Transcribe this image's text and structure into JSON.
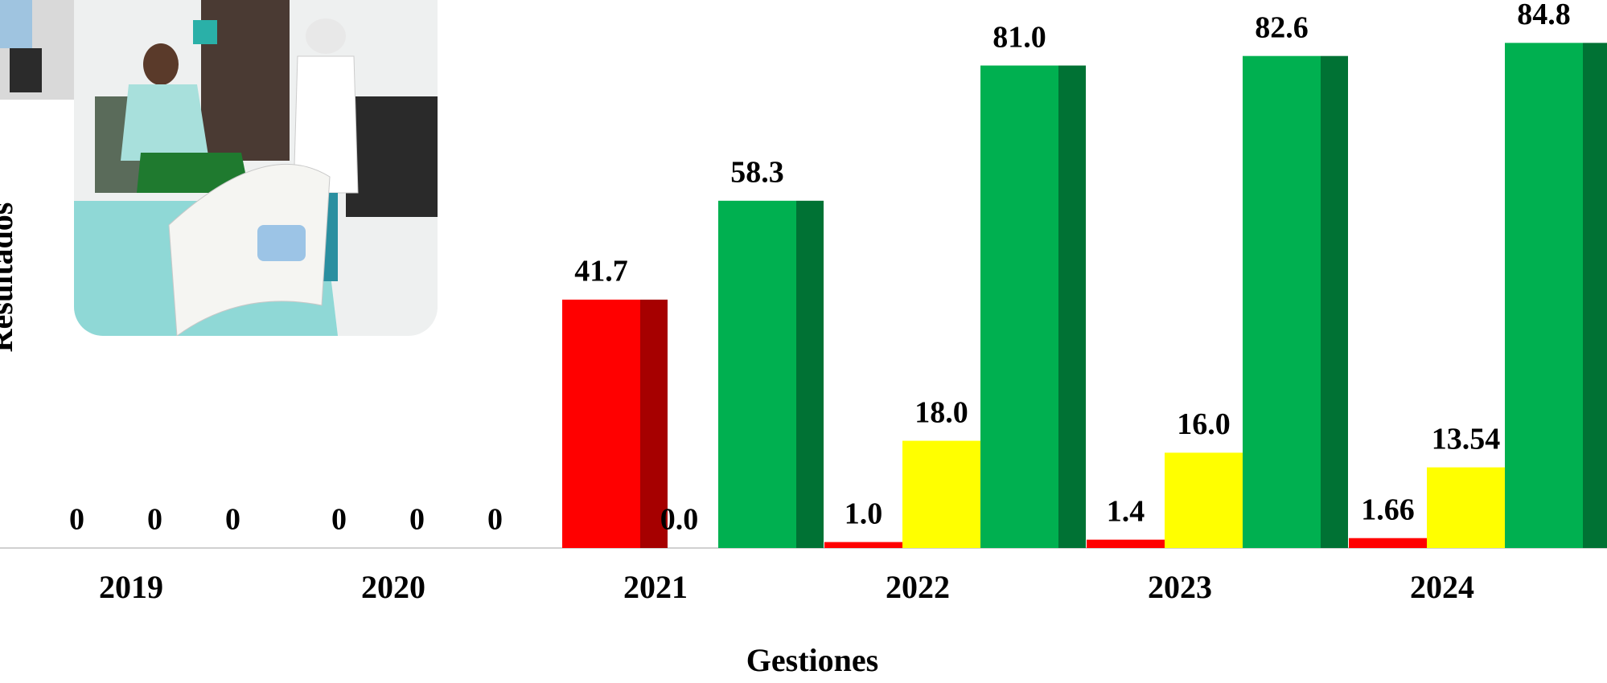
{
  "chart_data": {
    "type": "bar",
    "x_label": "Gestiones",
    "y_label": "Resultados",
    "categories": [
      "2019",
      "2020",
      "2021",
      "2022",
      "2023",
      "2024"
    ],
    "ylim": [
      0,
      92
    ],
    "series": [
      {
        "color": "#ff0000",
        "values": [
          0,
          0,
          41.7,
          1,
          1.4,
          1.66
        ],
        "value_labels": [
          "0",
          "0",
          "41.7",
          "1.0",
          "1.4",
          "1.66"
        ]
      },
      {
        "color": "#ffff00",
        "values": [
          0,
          0,
          0,
          18,
          16,
          13.54
        ],
        "value_labels": [
          "0",
          "0",
          "0.0",
          "18.0",
          "16.0",
          "13.54"
        ]
      },
      {
        "color": "#00b050",
        "values": [
          0,
          0,
          58.3,
          81,
          82.6,
          84.8
        ],
        "value_labels": [
          "0",
          "0",
          "58.3",
          "81.0",
          "82.6",
          "84.8"
        ]
      }
    ]
  }
}
